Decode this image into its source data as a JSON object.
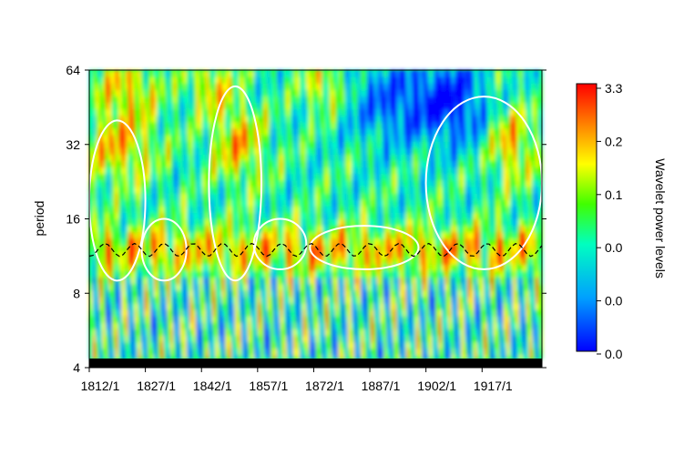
{
  "chart_data": {
    "type": "heatmap",
    "title": "",
    "xlabel": "",
    "ylabel": "period",
    "x_ticks": [
      "1812/1",
      "1827/1",
      "1842/1",
      "1857/1",
      "1872/1",
      "1887/1",
      "1902/1",
      "1917/1"
    ],
    "x_tick_years": [
      1812,
      1827,
      1842,
      1857,
      1872,
      1887,
      1902,
      1917
    ],
    "x_range": [
      1812,
      1933
    ],
    "y_scale": "log2",
    "y_ticks": [
      "4",
      "8",
      "16",
      "32",
      "64"
    ],
    "y_tick_values": [
      4,
      8,
      16,
      32,
      64
    ],
    "y_range": [
      4,
      64
    ],
    "colorbar": {
      "title": "Wavelet power levels",
      "labels": [
        "3.3",
        "0.2",
        "0.1",
        "0.0",
        "0.0",
        "0.0"
      ],
      "colors": [
        "#0000ff",
        "#00ffff",
        "#00ff00",
        "#ffff00",
        "#ff8000",
        "#ff0000"
      ]
    },
    "ridge_period": 12,
    "significant_regions": [
      {
        "x0": 1812,
        "x1": 1827,
        "p0": 9,
        "p1": 40
      },
      {
        "x0": 1826,
        "x1": 1838,
        "p0": 9,
        "p1": 16
      },
      {
        "x0": 1844,
        "x1": 1858,
        "p0": 9,
        "p1": 55
      },
      {
        "x0": 1856,
        "x1": 1870,
        "p0": 10,
        "p1": 16
      },
      {
        "x0": 1871,
        "x1": 1900,
        "p0": 10,
        "p1": 15
      },
      {
        "x0": 1902,
        "x1": 1933,
        "p0": 10,
        "p1": 50
      }
    ]
  }
}
